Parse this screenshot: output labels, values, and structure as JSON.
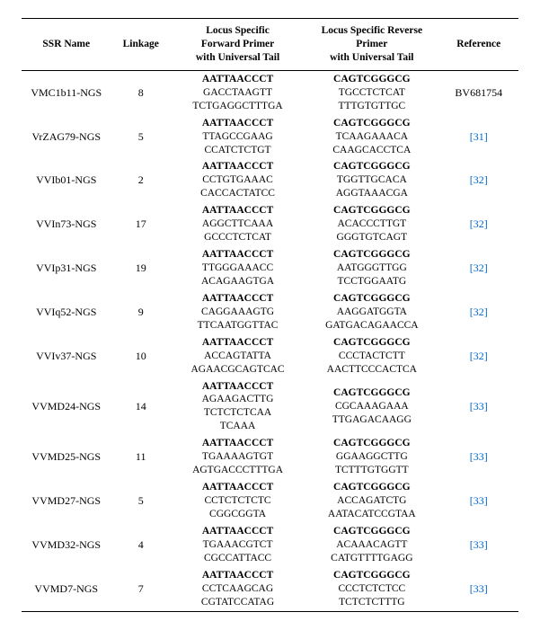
{
  "headers": {
    "ssr_name": "SSR Name",
    "linkage": "Linkage",
    "fwd": "Locus Specific\nForward Primer\nwith Universal Tail",
    "rev": "Locus Specific Reverse\nPrimer\nwith Universal Tail",
    "reference": "Reference"
  },
  "rows": [
    {
      "name": "VMC1b11-NGS",
      "linkage": "8",
      "fwd_tail": "AATTAACCCT",
      "fwd_l1": "GACCTAAGTT",
      "fwd_l2": "TCTGAGGCTTTGA",
      "rev_tail": "CAGTCGGGCG",
      "rev_l1": "TGCCTCTCAT",
      "rev_l2": "TTTGTGTTGC",
      "ref_text": "BV681754",
      "ref_is_link": false
    },
    {
      "name": "VrZAG79-NGS",
      "linkage": "5",
      "fwd_tail": "AATTAACCCT",
      "fwd_l1": "TTAGCCGAAG",
      "fwd_l2": "CCATCTCTGT",
      "rev_tail": "CAGTCGGGCG",
      "rev_l1": "TCAAGAAACA",
      "rev_l2": "CAAGCACCTCA",
      "ref_text": "[31]",
      "ref_is_link": true
    },
    {
      "name": "VVIb01-NGS",
      "linkage": "2",
      "fwd_tail": "AATTAACCCT",
      "fwd_l1": "CCTGTGAAAC",
      "fwd_l2": "CACCACTATCC",
      "rev_tail": "CAGTCGGGCG",
      "rev_l1": "TGGTTGCACA",
      "rev_l2": "AGGTAAACGA",
      "ref_text": "[32]",
      "ref_is_link": true
    },
    {
      "name": "VVIn73-NGS",
      "linkage": "17",
      "fwd_tail": "AATTAACCCT",
      "fwd_l1": "AGGCTTCAAA",
      "fwd_l2": "GCCCTCTCAT",
      "rev_tail": "CAGTCGGGCG",
      "rev_l1": "ACACCCTTGT",
      "rev_l2": "GGGTGTCAGT",
      "ref_text": "[32]",
      "ref_is_link": true
    },
    {
      "name": "VVIp31-NGS",
      "linkage": "19",
      "fwd_tail": "AATTAACCCT",
      "fwd_l1": "TTGGGAAACC",
      "fwd_l2": "ACAGAAGTGA",
      "rev_tail": "CAGTCGGGCG",
      "rev_l1": "AATGGGTTGG",
      "rev_l2": "TCCTGGAATG",
      "ref_text": "[32]",
      "ref_is_link": true
    },
    {
      "name": "VVIq52-NGS",
      "linkage": "9",
      "fwd_tail": "AATTAACCCT",
      "fwd_l1": "CAGGAAAGTG",
      "fwd_l2": "TTCAATGGTTAC",
      "rev_tail": "CAGTCGGGCG",
      "rev_l1": "AAGGATGGTA",
      "rev_l2": "GATGACAGAACCA",
      "ref_text": "[32]",
      "ref_is_link": true
    },
    {
      "name": "VVIv37-NGS",
      "linkage": "10",
      "fwd_tail": "AATTAACCCT",
      "fwd_l1": "ACCAGTATTA",
      "fwd_l2": "AGAACGCAGTCAC",
      "rev_tail": "CAGTCGGGCG",
      "rev_l1": "CCCTACTCTT",
      "rev_l2": "AACTTCCCACTCA",
      "ref_text": "[32]",
      "ref_is_link": true
    },
    {
      "name": "VVMD24-NGS",
      "linkage": "14",
      "fwd_tail": "AATTAACCCT",
      "fwd_l1": "AGAAGACTTG",
      "fwd_l2": "TCTCTCTCAA",
      "fwd_l3": "TCAAA",
      "rev_tail": "CAGTCGGGCG",
      "rev_l1": "CGCAAAGAAA",
      "rev_l2": "TTGAGACAAGG",
      "ref_text": "[33]",
      "ref_is_link": true
    },
    {
      "name": "VVMD25-NGS",
      "linkage": "11",
      "fwd_tail": "AATTAACCCT",
      "fwd_l1": "TGAAAAGTGT",
      "fwd_l2": "AGTGACCCTTTGA",
      "rev_tail": "CAGTCGGGCG",
      "rev_l1": "GGAAGGCTTG",
      "rev_l2": "TCTTTGTGGTT",
      "ref_text": "[33]",
      "ref_is_link": true
    },
    {
      "name": "VVMD27-NGS",
      "linkage": "5",
      "fwd_tail": "AATTAACCCT",
      "fwd_l1": "CCTCTCTCTC",
      "fwd_l2": "CGGCGGTA",
      "rev_tail": "CAGTCGGGCG",
      "rev_l1": "ACCAGATCTG",
      "rev_l2": "AATACATCCGTAA",
      "ref_text": "[33]",
      "ref_is_link": true
    },
    {
      "name": "VVMD32-NGS",
      "linkage": "4",
      "fwd_tail": "AATTAACCCT",
      "fwd_l1": "TGAAACGTCT",
      "fwd_l2": "CGCCATTACC",
      "rev_tail": "CAGTCGGGCG",
      "rev_l1": "ACAAACAGTT",
      "rev_l2": "CATGTTTTGAGG",
      "ref_text": "[33]",
      "ref_is_link": true
    },
    {
      "name": "VVMD7-NGS",
      "linkage": "7",
      "fwd_tail": "AATTAACCCT",
      "fwd_l1": "CCTCAAGCAG",
      "fwd_l2": "CGTATCCATAG",
      "rev_tail": "CAGTCGGGCG",
      "rev_l1": "CCCTCTCTCC",
      "rev_l2": "TCTCTCTTTG",
      "ref_text": "[33]",
      "ref_is_link": true
    }
  ],
  "colors": {
    "link": "#0066cc",
    "text": "#000000",
    "bg": "#ffffff"
  },
  "font": {
    "family": "Palatino Linotype, Book Antiqua, Palatino, Georgia, serif",
    "base_size_pt": 10,
    "header_size_pt": 10,
    "seq_size_pt": 10
  }
}
